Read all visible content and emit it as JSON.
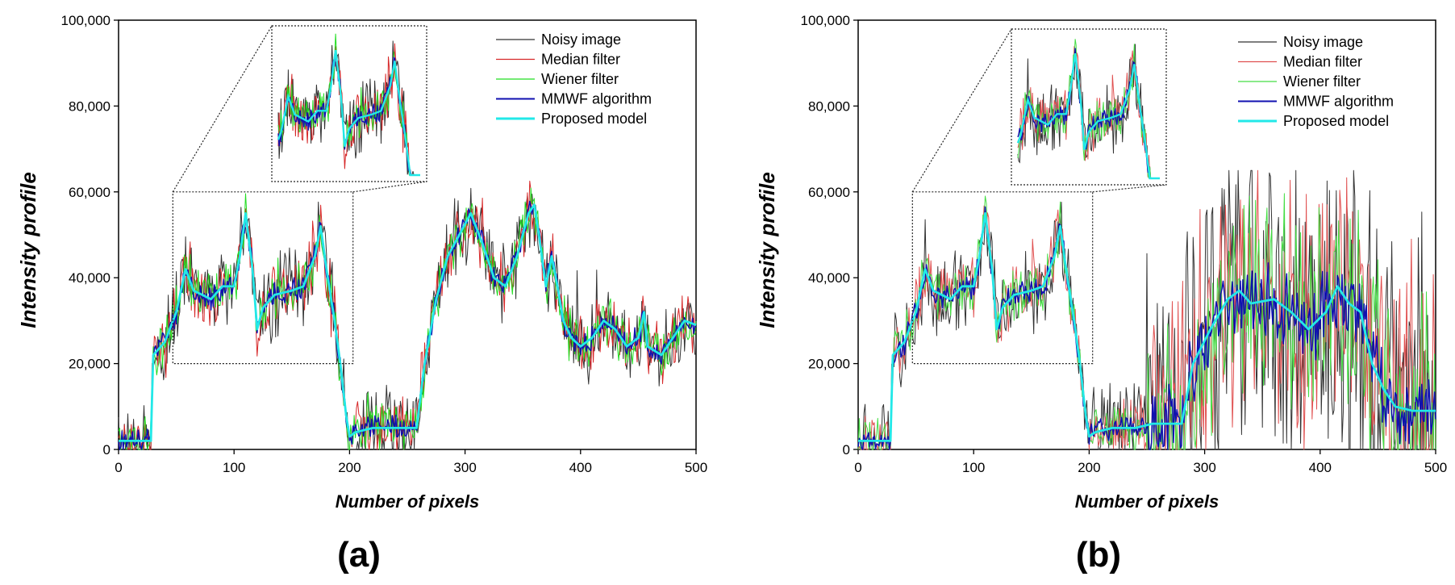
{
  "figure": {
    "panel_labels": [
      "(a)",
      "(b)"
    ]
  },
  "chart_data": [
    {
      "type": "line",
      "panel": "(a)",
      "title": "",
      "xlabel": "Number of pixels",
      "ylabel": "Intensity profile",
      "xlim": [
        0,
        500
      ],
      "ylim": [
        0,
        100000
      ],
      "xticks": [
        0,
        100,
        200,
        300,
        400,
        500
      ],
      "xtick_labels": [
        "0",
        "100",
        "200",
        "300",
        "400",
        "500"
      ],
      "yticks": [
        0,
        20000,
        40000,
        60000,
        80000,
        100000
      ],
      "ytick_labels": [
        "0",
        "20,000",
        "40,000",
        "60,000",
        "80,000",
        "100,000"
      ],
      "grid": false,
      "legend_position": "top-right",
      "inset": {
        "zoom_region_x": [
          47,
          203
        ],
        "zoom_region_y": [
          20000,
          60000
        ],
        "placement": "top-center"
      },
      "series": [
        {
          "name": "Noisy image",
          "color": "#333333",
          "noise": 7500
        },
        {
          "name": "Median filter",
          "color": "#d62728",
          "noise": 5500
        },
        {
          "name": "Wiener filter",
          "color": "#22dd22",
          "noise": 4500
        },
        {
          "name": "MMWF algorithm",
          "color": "#1010b0",
          "noise": 2200
        },
        {
          "name": "Proposed model",
          "color": "#22e8e8",
          "noise": 0
        }
      ],
      "profile": [
        [
          0,
          2000
        ],
        [
          28,
          2000
        ],
        [
          30,
          22000
        ],
        [
          40,
          25000
        ],
        [
          50,
          32000
        ],
        [
          58,
          42000
        ],
        [
          65,
          37000
        ],
        [
          80,
          35000
        ],
        [
          90,
          38000
        ],
        [
          100,
          38000
        ],
        [
          105,
          45000
        ],
        [
          110,
          55000
        ],
        [
          116,
          42000
        ],
        [
          120,
          28000
        ],
        [
          125,
          33000
        ],
        [
          135,
          36000
        ],
        [
          150,
          37000
        ],
        [
          160,
          38000
        ],
        [
          170,
          45000
        ],
        [
          175,
          52000
        ],
        [
          180,
          42000
        ],
        [
          187,
          30000
        ],
        [
          192,
          20000
        ],
        [
          197,
          8000
        ],
        [
          200,
          3000
        ],
        [
          205,
          4000
        ],
        [
          220,
          5000
        ],
        [
          240,
          5000
        ],
        [
          258,
          5000
        ],
        [
          265,
          20000
        ],
        [
          275,
          35000
        ],
        [
          285,
          45000
        ],
        [
          295,
          50000
        ],
        [
          305,
          55000
        ],
        [
          315,
          48000
        ],
        [
          325,
          40000
        ],
        [
          335,
          38000
        ],
        [
          345,
          45000
        ],
        [
          355,
          55000
        ],
        [
          360,
          57000
        ],
        [
          365,
          48000
        ],
        [
          370,
          38000
        ],
        [
          375,
          45000
        ],
        [
          380,
          38000
        ],
        [
          385,
          30000
        ],
        [
          392,
          26000
        ],
        [
          400,
          24000
        ],
        [
          410,
          26000
        ],
        [
          420,
          30000
        ],
        [
          430,
          28000
        ],
        [
          440,
          24000
        ],
        [
          450,
          26000
        ],
        [
          455,
          32000
        ],
        [
          458,
          24000
        ],
        [
          470,
          22000
        ],
        [
          480,
          26000
        ],
        [
          490,
          30000
        ],
        [
          500,
          29000
        ]
      ]
    },
    {
      "type": "line",
      "panel": "(b)",
      "title": "",
      "xlabel": "Number of pixels",
      "ylabel": "Intensity profile",
      "xlim": [
        0,
        500
      ],
      "ylim": [
        0,
        100000
      ],
      "xticks": [
        0,
        100,
        200,
        300,
        400,
        500
      ],
      "xtick_labels": [
        "0",
        "100",
        "200",
        "300",
        "400",
        "500"
      ],
      "yticks": [
        0,
        20000,
        40000,
        60000,
        80000,
        100000
      ],
      "ytick_labels": [
        "0",
        "20,000",
        "40,000",
        "60,000",
        "80,000",
        "100,000"
      ],
      "grid": false,
      "legend_position": "top-right",
      "inset": {
        "zoom_region_x": [
          47,
          203
        ],
        "zoom_region_y": [
          20000,
          60000
        ],
        "placement": "top-center"
      },
      "heavy_noise_region": [
        250,
        500
      ],
      "series": [
        {
          "name": "Noisy image",
          "color": "#333333",
          "noise": 7500
        },
        {
          "name": "Median filter",
          "color": "#e05050",
          "noise": 5500
        },
        {
          "name": "Wiener filter",
          "color": "#44dd44",
          "noise": 4500
        },
        {
          "name": "MMWF algorithm",
          "color": "#1010b0",
          "noise": 2200
        },
        {
          "name": "Proposed model",
          "color": "#22e8e8",
          "noise": 0
        }
      ],
      "profile": [
        [
          0,
          2000
        ],
        [
          28,
          2000
        ],
        [
          30,
          22000
        ],
        [
          40,
          25000
        ],
        [
          50,
          32000
        ],
        [
          58,
          42000
        ],
        [
          65,
          37000
        ],
        [
          80,
          35000
        ],
        [
          90,
          38000
        ],
        [
          100,
          38000
        ],
        [
          105,
          45000
        ],
        [
          110,
          55000
        ],
        [
          116,
          42000
        ],
        [
          120,
          28000
        ],
        [
          125,
          33000
        ],
        [
          135,
          36000
        ],
        [
          150,
          37000
        ],
        [
          160,
          38000
        ],
        [
          170,
          45000
        ],
        [
          175,
          52000
        ],
        [
          180,
          42000
        ],
        [
          187,
          30000
        ],
        [
          192,
          20000
        ],
        [
          197,
          8000
        ],
        [
          200,
          3000
        ],
        [
          205,
          4000
        ],
        [
          220,
          5000
        ],
        [
          240,
          5000
        ],
        [
          255,
          6000
        ],
        [
          280,
          6000
        ],
        [
          290,
          20000
        ],
        [
          305,
          28000
        ],
        [
          320,
          35000
        ],
        [
          330,
          37000
        ],
        [
          340,
          34000
        ],
        [
          360,
          35000
        ],
        [
          375,
          32000
        ],
        [
          390,
          28000
        ],
        [
          405,
          32000
        ],
        [
          415,
          38000
        ],
        [
          425,
          34000
        ],
        [
          435,
          32000
        ],
        [
          445,
          20000
        ],
        [
          455,
          14000
        ],
        [
          465,
          10000
        ],
        [
          480,
          9000
        ],
        [
          500,
          9000
        ]
      ]
    }
  ]
}
